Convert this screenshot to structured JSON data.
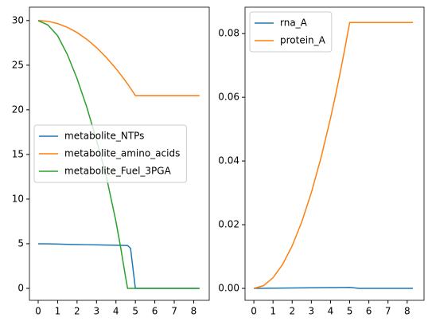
{
  "chart_data": [
    {
      "type": "line",
      "x": [
        0,
        0.5,
        1,
        1.5,
        2,
        2.5,
        3,
        3.5,
        4,
        4.25,
        4.5,
        4.6,
        4.75,
        5,
        5.5,
        6,
        6.5,
        7,
        7.5,
        8,
        8.3
      ],
      "series": [
        {
          "name": "metabolite_NTPs",
          "color": "#1f77b4",
          "values": [
            5,
            4.98,
            4.96,
            4.93,
            4.91,
            4.89,
            4.87,
            4.85,
            4.83,
            4.82,
            4.81,
            4.8,
            4.5,
            0,
            0,
            0,
            0,
            0,
            0,
            0,
            0
          ]
        },
        {
          "name": "metabolite_amino_acids",
          "color": "#ff7f0e",
          "values": [
            30,
            29.92,
            29.66,
            29.24,
            28.66,
            27.9,
            26.98,
            25.88,
            24.62,
            23.93,
            23.2,
            22.89,
            22.42,
            21.6,
            21.6,
            21.6,
            21.6,
            21.6,
            21.6,
            21.6,
            21.6
          ]
        },
        {
          "name": "metabolite_Fuel_3PGA",
          "color": "#2ca02c",
          "values": [
            30,
            29.5,
            28.3,
            26.2,
            23.5,
            20.3,
            16.6,
            12.6,
            7.5,
            4.5,
            1.2,
            0,
            0,
            0,
            0,
            0,
            0,
            0,
            0,
            0,
            0
          ]
        }
      ],
      "xlim": [
        -0.45,
        8.8
      ],
      "xticks": [
        0,
        1,
        2,
        3,
        4,
        5,
        6,
        7,
        8
      ],
      "ylim": [
        -1.34,
        31.5
      ],
      "yticks": [
        0,
        5,
        10,
        15,
        20,
        25,
        30
      ],
      "legend": "center-left"
    },
    {
      "type": "line",
      "x": [
        0,
        0.5,
        1,
        1.5,
        2,
        2.5,
        3,
        3.5,
        4,
        4.25,
        4.5,
        4.6,
        4.75,
        5,
        5.5,
        6,
        6.5,
        7,
        7.5,
        8,
        8.3
      ],
      "series": [
        {
          "name": "rna_A",
          "color": "#1f77b4",
          "values": [
            0,
            3e-05,
            6e-05,
            9e-05,
            0.00012,
            0.00015,
            0.00018,
            0.00021,
            0.00024,
            0.000255,
            0.00027,
            0.000276,
            0.000285,
            0.0003,
            0,
            0,
            0,
            0,
            0,
            0,
            0
          ]
        },
        {
          "name": "protein_A",
          "color": "#ff7f0e",
          "values": [
            0,
            0.00084,
            0.00334,
            0.00752,
            0.01336,
            0.02088,
            0.03006,
            0.04092,
            0.05344,
            0.06033,
            0.06764,
            0.07067,
            0.07536,
            0.0835,
            0.0835,
            0.0835,
            0.0835,
            0.0835,
            0.0835,
            0.0835,
            0.0835
          ]
        }
      ],
      "xlim": [
        -0.46,
        8.88
      ],
      "xticks": [
        0,
        1,
        2,
        3,
        4,
        5,
        6,
        7,
        8
      ],
      "ylim": [
        -0.00375,
        0.0883
      ],
      "yticks": [
        {
          "value": 0,
          "label": "0.00"
        },
        {
          "value": 0.02,
          "label": "0.02"
        },
        {
          "value": 0.04,
          "label": "0.04"
        },
        {
          "value": 0.06,
          "label": "0.06"
        },
        {
          "value": 0.08,
          "label": "0.08"
        }
      ],
      "legend": "upper-left"
    }
  ]
}
